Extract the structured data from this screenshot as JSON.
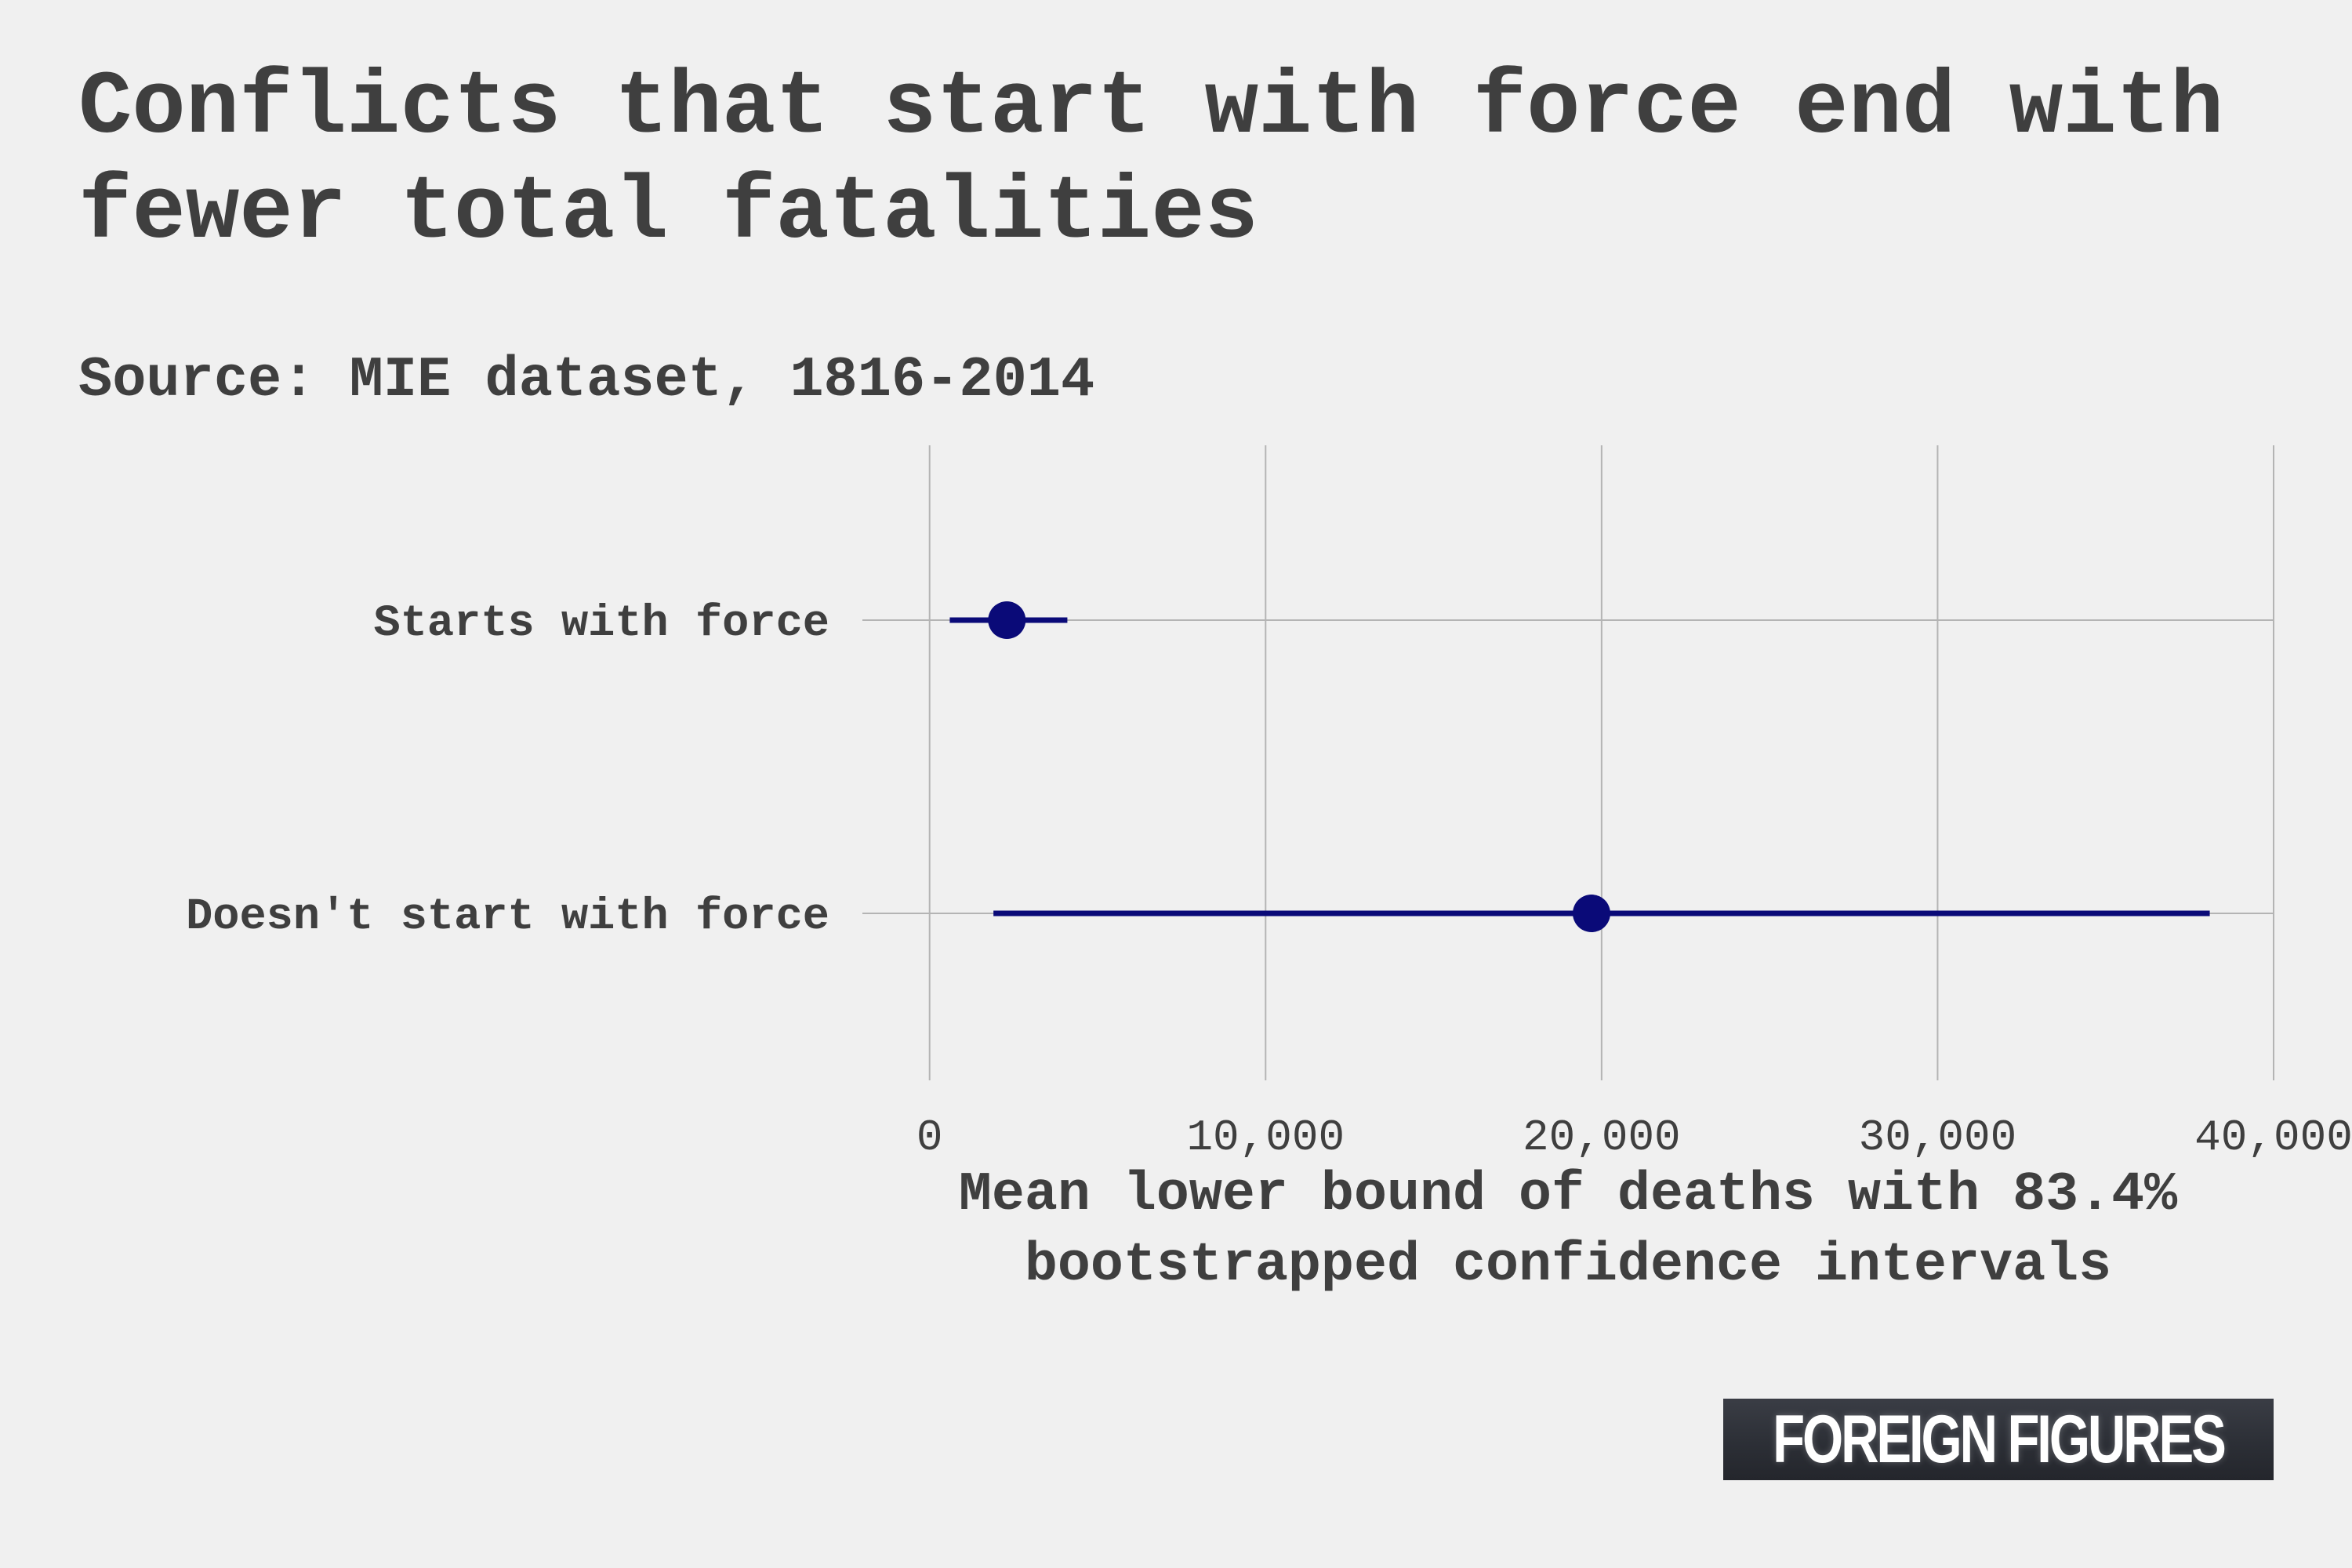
{
  "title": "Conflicts that start with force end with fewer total fatalities",
  "subtitle": "Source: MIE dataset, 1816-2014",
  "brand": "FOREIGN FIGURES",
  "colors": {
    "background": "#f0f0f0",
    "series": "#0a0a78",
    "grid": "#b4b4b4",
    "text": "#3f3f3f"
  },
  "chart_data": {
    "type": "dot-interval",
    "categories": [
      "Starts with force",
      "Doesn't start with force"
    ],
    "series": [
      {
        "values": [
          2300,
          19700
        ],
        "lower": [
          600,
          1900
        ],
        "upper": [
          4100,
          38100
        ]
      }
    ],
    "xlabel": "Mean lower bound of deaths with 83.4% bootstrapped confidence intervals",
    "ylabel": "",
    "xlim": [
      -2000,
      40000
    ],
    "xticks": [
      0,
      10000,
      20000,
      30000,
      40000
    ],
    "xtick_labels": [
      "0",
      "10,000",
      "20,000",
      "30,000",
      "40,000"
    ],
    "grid": true
  }
}
